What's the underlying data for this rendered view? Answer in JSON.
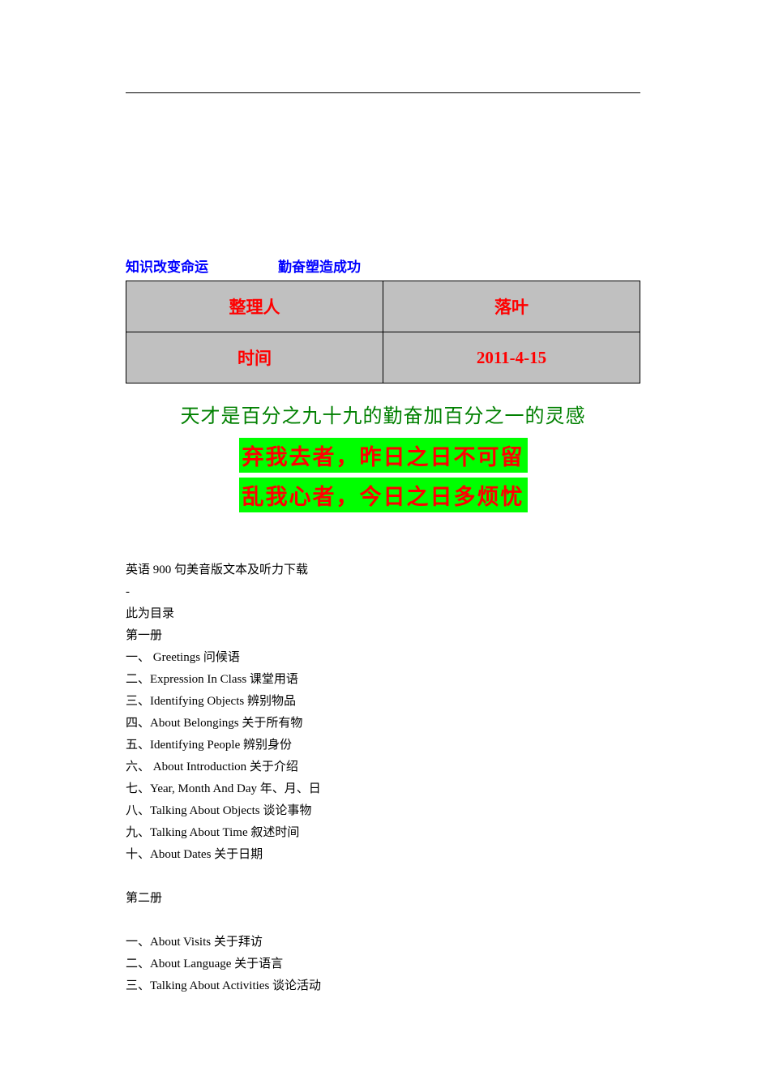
{
  "header": {
    "text_left": "知识改变命运",
    "text_right": "勤奋塑造成功",
    "color": "#0000ff",
    "font_family": "SimHei",
    "font_size": 17
  },
  "info_table": {
    "background_color": "#c0c0c0",
    "text_color": "#ff0000",
    "border_color": "#000000",
    "font_size": 21,
    "rows": [
      {
        "label": "整理人",
        "value": "落叶"
      },
      {
        "label": "时间",
        "value": "2011-4-15"
      }
    ]
  },
  "quote_green": {
    "text": "天才是百分之九十九的勤奋加百分之一的灵感",
    "color": "#008000",
    "font_family": "KaiTi",
    "font_size": 24
  },
  "highlight_lines": {
    "background_color": "#00ff00",
    "text_color": "#ff0000",
    "font_family": "KaiTi",
    "font_size": 27,
    "lines": [
      "弃我去者，昨日之日不可留",
      "乱我心者，今日之日多烦忧"
    ]
  },
  "content": {
    "font_family": "SimSun",
    "font_size": 15,
    "line_height": 27,
    "color": "#000000",
    "title": "英语 900 句美音版文本及听力下载",
    "dash": "-",
    "toc_label": "此为目录",
    "book1": {
      "heading": "第一册",
      "items": [
        "一、 Greetings 问候语",
        "二、Expression In Class 课堂用语",
        "三、Identifying Objects 辨别物品",
        "四、About Belongings 关于所有物",
        "五、Identifying People 辨别身份",
        "六、 About Introduction 关于介绍",
        "七、Year, Month And Day 年、月、日",
        "八、Talking About Objects 谈论事物",
        "九、Talking About Time 叙述时间",
        "十、About Dates 关于日期"
      ]
    },
    "book2": {
      "heading": "第二册",
      "items": [
        "一、About Visits 关于拜访",
        "二、About Language 关于语言",
        "三、Talking About Activities 谈论活动"
      ]
    }
  }
}
